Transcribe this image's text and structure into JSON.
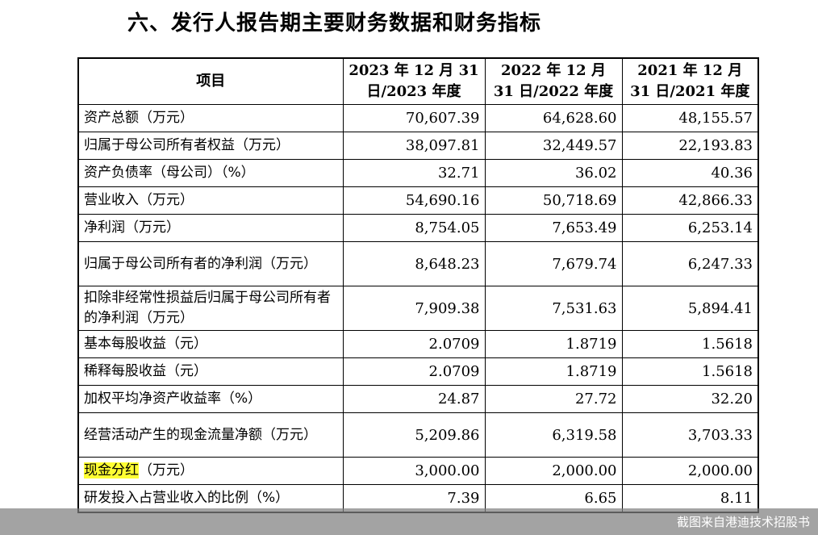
{
  "heading": "六、发行人报告期主要财务数据和财务指标",
  "table": {
    "headers": {
      "item": "项目",
      "y2023": "2023 年 12 月 31 日/2023 年度",
      "y2022": "2022 年 12 月 31 日/2022 年度",
      "y2021": "2021 年 12 月 31 日/2021 年度"
    },
    "rows": [
      {
        "label": "资产总额（万元）",
        "v2023": "70,607.39",
        "v2022": "64,628.60",
        "v2021": "48,155.57"
      },
      {
        "label": "归属于母公司所有者权益（万元）",
        "v2023": "38,097.81",
        "v2022": "32,449.57",
        "v2021": "22,193.83"
      },
      {
        "label": "资产负债率（母公司）（%）",
        "v2023": "32.71",
        "v2022": "36.02",
        "v2021": "40.36"
      },
      {
        "label": "营业收入（万元）",
        "v2023": "54,690.16",
        "v2022": "50,718.69",
        "v2021": "42,866.33"
      },
      {
        "label": "净利润（万元）",
        "v2023": "8,754.05",
        "v2022": "7,653.49",
        "v2021": "6,253.14"
      },
      {
        "label": "归属于母公司所有者的净利润（万元）",
        "v2023": "8,648.23",
        "v2022": "7,679.74",
        "v2021": "6,247.33"
      },
      {
        "label": "扣除非经常性损益后归属于母公司所有者的净利润（万元）",
        "v2023": "7,909.38",
        "v2022": "7,531.63",
        "v2021": "5,894.41"
      },
      {
        "label": "基本每股收益（元）",
        "v2023": "2.0709",
        "v2022": "1.8719",
        "v2021": "1.5618"
      },
      {
        "label": "稀释每股收益（元）",
        "v2023": "2.0709",
        "v2022": "1.8719",
        "v2021": "1.5618"
      },
      {
        "label": "加权平均净资产收益率（%）",
        "v2023": "24.87",
        "v2022": "27.72",
        "v2021": "32.20"
      },
      {
        "label": "经营活动产生的现金流量净额（万元）",
        "v2023": "5,209.86",
        "v2022": "6,319.58",
        "v2021": "3,703.33"
      },
      {
        "label_highlight": "现金分红",
        "label_rest": "（万元）",
        "v2023": "3,000.00",
        "v2022": "2,000.00",
        "v2021": "2,000.00"
      },
      {
        "label": "研发投入占营业收入的比例（%）",
        "v2023": "7.39",
        "v2022": "6.65",
        "v2021": "8.11"
      }
    ]
  },
  "highlight_color": "#ffff33",
  "watermark": "截图来自港迪技术招股书"
}
